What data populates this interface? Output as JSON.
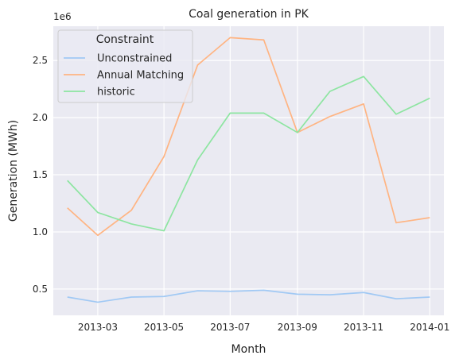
{
  "chart_data": {
    "type": "line",
    "title": "Coal generation in PK",
    "xlabel": "Month",
    "ylabel": "Generation (MWh)",
    "y_offset_text": "1e6",
    "x": [
      "2013-02-01",
      "2013-03-01",
      "2013-04-01",
      "2013-05-01",
      "2013-06-01",
      "2013-07-01",
      "2013-08-01",
      "2013-09-01",
      "2013-10-01",
      "2013-11-01",
      "2013-12-01",
      "2014-01-01"
    ],
    "xlim": [
      "2013-01-19",
      "2014-01-14"
    ],
    "ylim": [
      0.27,
      2.8
    ],
    "x_ticks": [
      "2013-03-01",
      "2013-05-01",
      "2013-07-01",
      "2013-09-01",
      "2013-11-01",
      "2014-01-01"
    ],
    "x_tick_labels": [
      "2013-03",
      "2013-05",
      "2013-07",
      "2013-09",
      "2013-11",
      "2014-01"
    ],
    "y_ticks": [
      0.5,
      1.0,
      1.5,
      2.0,
      2.5
    ],
    "y_tick_labels": [
      "0.5",
      "1.0",
      "1.5",
      "2.0",
      "2.5"
    ],
    "grid": true,
    "legend": {
      "title": "Constraint",
      "placement": "top-left"
    },
    "series": [
      {
        "name": "Unconstrained",
        "color": "#a1c9f4",
        "values": [
          0.43,
          0.385,
          0.43,
          0.435,
          0.485,
          0.48,
          0.49,
          0.455,
          0.45,
          0.47,
          0.415,
          0.43
        ]
      },
      {
        "name": "Annual Matching",
        "color": "#ffb482",
        "values": [
          1.21,
          0.97,
          1.19,
          1.66,
          2.46,
          2.7,
          2.68,
          1.87,
          2.01,
          2.12,
          1.08,
          1.125
        ]
      },
      {
        "name": "historic",
        "color": "#8de5a1",
        "values": [
          1.45,
          1.17,
          1.07,
          1.01,
          1.63,
          2.04,
          2.04,
          1.87,
          2.23,
          2.36,
          2.03,
          2.17
        ]
      }
    ]
  }
}
